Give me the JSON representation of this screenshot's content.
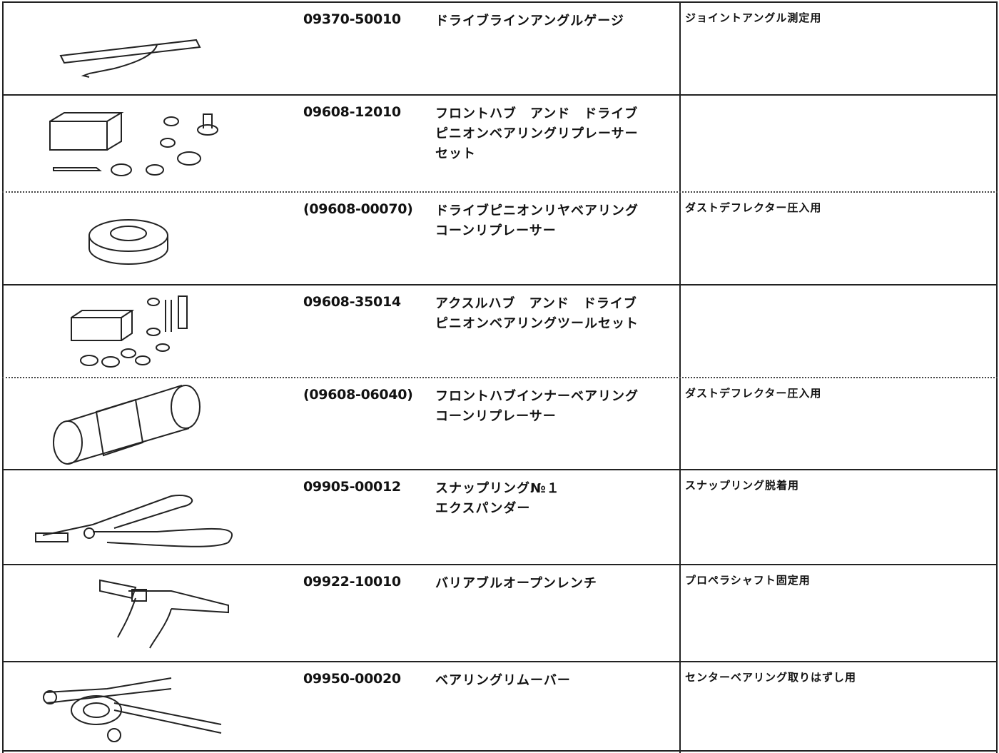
{
  "table": {
    "rows": [
      {
        "part": "09370-50010",
        "name": [
          "ドライブラインアングルゲージ"
        ],
        "use": "ジョイントアングル測定用"
      },
      {
        "part": "09608-12010",
        "name": [
          "フロントハブ　アンド　ドライブ",
          "ピニオンベアリングリプレーサー",
          "セット"
        ]
      },
      {
        "part": "(09608-00070)",
        "name": [
          "ドライブピニオンリヤベアリング",
          "コーンリプレーサー"
        ],
        "use": "ダストデフレクター圧入用"
      },
      {
        "part": "09608-35014",
        "name": [
          "アクスルハブ　アンド　ドライブ",
          "ピニオンベアリングツールセット"
        ]
      },
      {
        "part": "(09608-06040)",
        "name": [
          "フロントハブインナーベアリング",
          "コーンリプレーサー"
        ],
        "use": "ダストデフレクター圧入用"
      },
      {
        "part": "09905-00012",
        "name": [
          "スナップリング№１",
          "エクスパンダー"
        ],
        "use": "スナップリング脱着用"
      },
      {
        "part": "09922-10010",
        "name": [
          "バリアブルオープンレンチ"
        ],
        "use": "プロペラシャフト固定用"
      },
      {
        "part": "09950-00020",
        "name": [
          "ベアリングリムーバー"
        ],
        "use": "センターベアリング取りはずし用"
      }
    ]
  }
}
